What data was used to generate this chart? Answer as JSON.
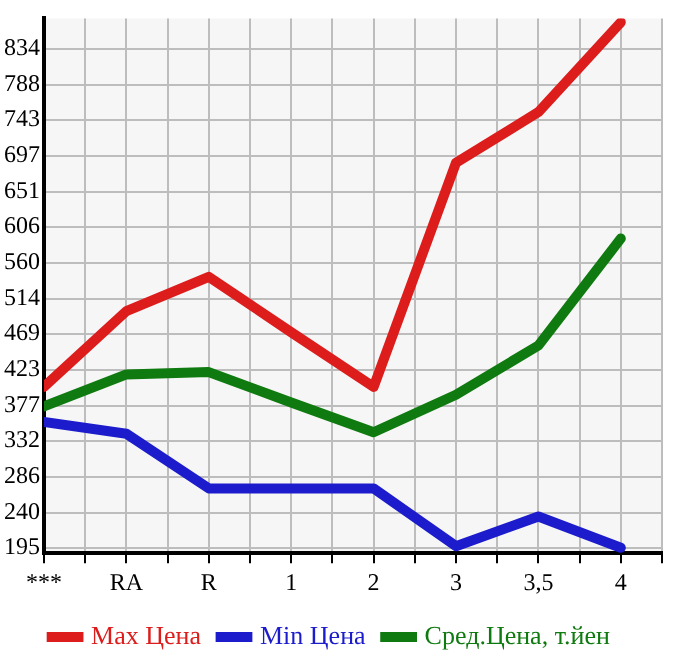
{
  "chart_data": {
    "type": "line",
    "categories": [
      "***",
      "RA",
      "R",
      "1",
      "2",
      "3",
      "3,5",
      "4"
    ],
    "series": [
      {
        "name": "Max Цена",
        "color": "#dd1c1c",
        "values": [
          401,
          498,
          542,
          471,
          401,
          688,
          753,
          868
        ]
      },
      {
        "name": "Min Цена",
        "color": "#1c1ccc",
        "values": [
          356,
          341,
          271,
          271,
          271,
          197,
          235,
          195
        ]
      },
      {
        "name": "Сред.Цена, т.йен",
        "color": "#0f7a0f",
        "values": [
          376,
          417,
          420,
          381,
          343,
          391,
          454,
          591
        ]
      }
    ],
    "ylim": [
      188,
      873
    ],
    "yticks": [
      195,
      240,
      286,
      332,
      377,
      423,
      469,
      514,
      560,
      606,
      651,
      697,
      743,
      788,
      834
    ],
    "grid": true,
    "legend": "bottom",
    "marker": "none",
    "line_style": "solid"
  }
}
